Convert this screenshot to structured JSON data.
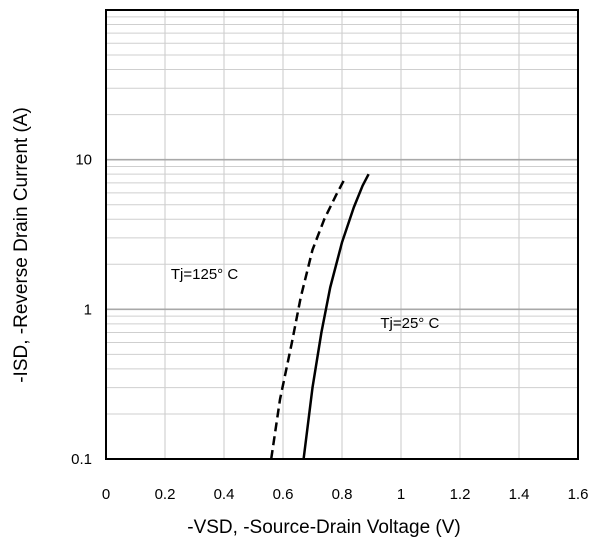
{
  "chart_data": {
    "type": "line",
    "xlabel": "-VSD, -Source-Drain Voltage (V)",
    "ylabel": "-ISD, -Reverse Drain Current (A)",
    "x_scale": "linear",
    "y_scale": "log",
    "xlim": [
      0,
      1.6
    ],
    "ylim": [
      0.1,
      100
    ],
    "x_ticks": [
      {
        "value": 0,
        "label": "0"
      },
      {
        "value": 0.2,
        "label": "0.2"
      },
      {
        "value": 0.4,
        "label": "0.4"
      },
      {
        "value": 0.6,
        "label": "0.6"
      },
      {
        "value": 0.8,
        "label": "0.8"
      },
      {
        "value": 1.0,
        "label": "1"
      },
      {
        "value": 1.2,
        "label": "1.2"
      },
      {
        "value": 1.4,
        "label": "1.4"
      },
      {
        "value": 1.6,
        "label": "1.6"
      }
    ],
    "y_ticks": [
      {
        "value": 0.1,
        "label": "0.1"
      },
      {
        "value": 1,
        "label": "1"
      },
      {
        "value": 10,
        "label": "10"
      }
    ],
    "grid": true,
    "series": [
      {
        "name": "Tj=125° C",
        "style": "dashed",
        "color": "#000000",
        "x": [
          0.56,
          0.59,
          0.63,
          0.66,
          0.7,
          0.74,
          0.78,
          0.81
        ],
        "y": [
          0.1,
          0.25,
          0.6,
          1.2,
          2.5,
          4.0,
          5.8,
          7.5
        ]
      },
      {
        "name": "Tj=25° C",
        "style": "solid",
        "color": "#000000",
        "x": [
          0.67,
          0.7,
          0.73,
          0.76,
          0.8,
          0.84,
          0.87,
          0.89
        ],
        "y": [
          0.1,
          0.3,
          0.7,
          1.4,
          2.8,
          4.8,
          6.7,
          8.0
        ]
      }
    ],
    "annotations": [
      {
        "text": "Tj=125° C",
        "x": 0.22,
        "y": 1.6
      },
      {
        "text": "Tj=25° C",
        "x": 0.93,
        "y": 0.75
      }
    ]
  }
}
